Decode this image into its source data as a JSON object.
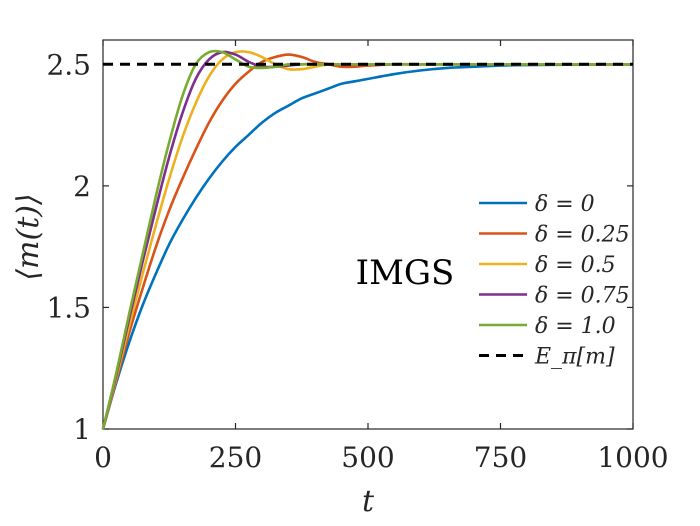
{
  "chart_data": {
    "type": "line",
    "title": "",
    "xlabel": "t",
    "ylabel": "⟨m(t)⟩",
    "xlim": [
      0,
      1000
    ],
    "ylim": [
      1,
      2.6
    ],
    "xticks": [
      0,
      250,
      500,
      750,
      1000
    ],
    "xtick_labels": [
      "0",
      "250",
      "500",
      "750",
      "1000"
    ],
    "yticks": [
      1,
      1.5,
      2,
      2.5
    ],
    "ytick_labels": [
      "1",
      "1.5",
      "2",
      "2.5"
    ],
    "grid": false,
    "legend_position": "right",
    "annotation": "IMGS",
    "x": [
      0,
      25,
      50,
      75,
      100,
      125,
      150,
      175,
      200,
      225,
      250,
      275,
      300,
      325,
      350,
      375,
      400,
      425,
      450,
      475,
      500,
      550,
      600,
      650,
      700,
      750,
      800,
      850,
      900,
      950,
      1000
    ],
    "series": [
      {
        "name": "δ = 0",
        "color": "#0072BD",
        "style": "solid",
        "values": [
          1.0,
          1.19,
          1.36,
          1.51,
          1.64,
          1.76,
          1.86,
          1.95,
          2.03,
          2.1,
          2.16,
          2.21,
          2.26,
          2.3,
          2.33,
          2.36,
          2.38,
          2.4,
          2.42,
          2.43,
          2.44,
          2.46,
          2.475,
          2.485,
          2.49,
          2.495,
          2.497,
          2.498,
          2.499,
          2.5,
          2.5
        ]
      },
      {
        "name": "δ = 0.25",
        "color": "#D95319",
        "style": "solid",
        "values": [
          1.0,
          1.2,
          1.4,
          1.58,
          1.75,
          1.9,
          2.03,
          2.15,
          2.26,
          2.35,
          2.42,
          2.47,
          2.51,
          2.53,
          2.54,
          2.53,
          2.51,
          2.5,
          2.49,
          2.49,
          2.495,
          2.5,
          2.5,
          2.5,
          2.5,
          2.5,
          2.5,
          2.5,
          2.5,
          2.5,
          2.5
        ]
      },
      {
        "name": "δ = 0.5",
        "color": "#EDB120",
        "style": "solid",
        "values": [
          1.0,
          1.21,
          1.43,
          1.64,
          1.84,
          2.03,
          2.2,
          2.34,
          2.45,
          2.52,
          2.55,
          2.55,
          2.53,
          2.5,
          2.48,
          2.48,
          2.49,
          2.5,
          2.5,
          2.5,
          2.5,
          2.5,
          2.5,
          2.5,
          2.5,
          2.5,
          2.5,
          2.5,
          2.5,
          2.5,
          2.5
        ]
      },
      {
        "name": "δ = 0.75",
        "color": "#7E2F8E",
        "style": "solid",
        "values": [
          1.0,
          1.22,
          1.46,
          1.69,
          1.91,
          2.12,
          2.3,
          2.44,
          2.52,
          2.55,
          2.54,
          2.51,
          2.49,
          2.49,
          2.495,
          2.5,
          2.5,
          2.5,
          2.5,
          2.5,
          2.5,
          2.5,
          2.5,
          2.5,
          2.5,
          2.5,
          2.5,
          2.5,
          2.5,
          2.5,
          2.5
        ]
      },
      {
        "name": "δ = 1.0",
        "color": "#77AC30",
        "style": "solid",
        "values": [
          1.0,
          1.23,
          1.48,
          1.72,
          1.96,
          2.18,
          2.37,
          2.5,
          2.55,
          2.55,
          2.52,
          2.49,
          2.485,
          2.49,
          2.5,
          2.5,
          2.5,
          2.5,
          2.5,
          2.5,
          2.5,
          2.5,
          2.5,
          2.5,
          2.5,
          2.5,
          2.5,
          2.5,
          2.5,
          2.5,
          2.5
        ]
      },
      {
        "name": "E_π[m]",
        "color": "#000000",
        "style": "dashed",
        "values": [
          2.5,
          2.5,
          2.5,
          2.5,
          2.5,
          2.5,
          2.5,
          2.5,
          2.5,
          2.5,
          2.5,
          2.5,
          2.5,
          2.5,
          2.5,
          2.5,
          2.5,
          2.5,
          2.5,
          2.5,
          2.5,
          2.5,
          2.5,
          2.5,
          2.5,
          2.5,
          2.5,
          2.5,
          2.5,
          2.5,
          2.5
        ]
      }
    ]
  }
}
